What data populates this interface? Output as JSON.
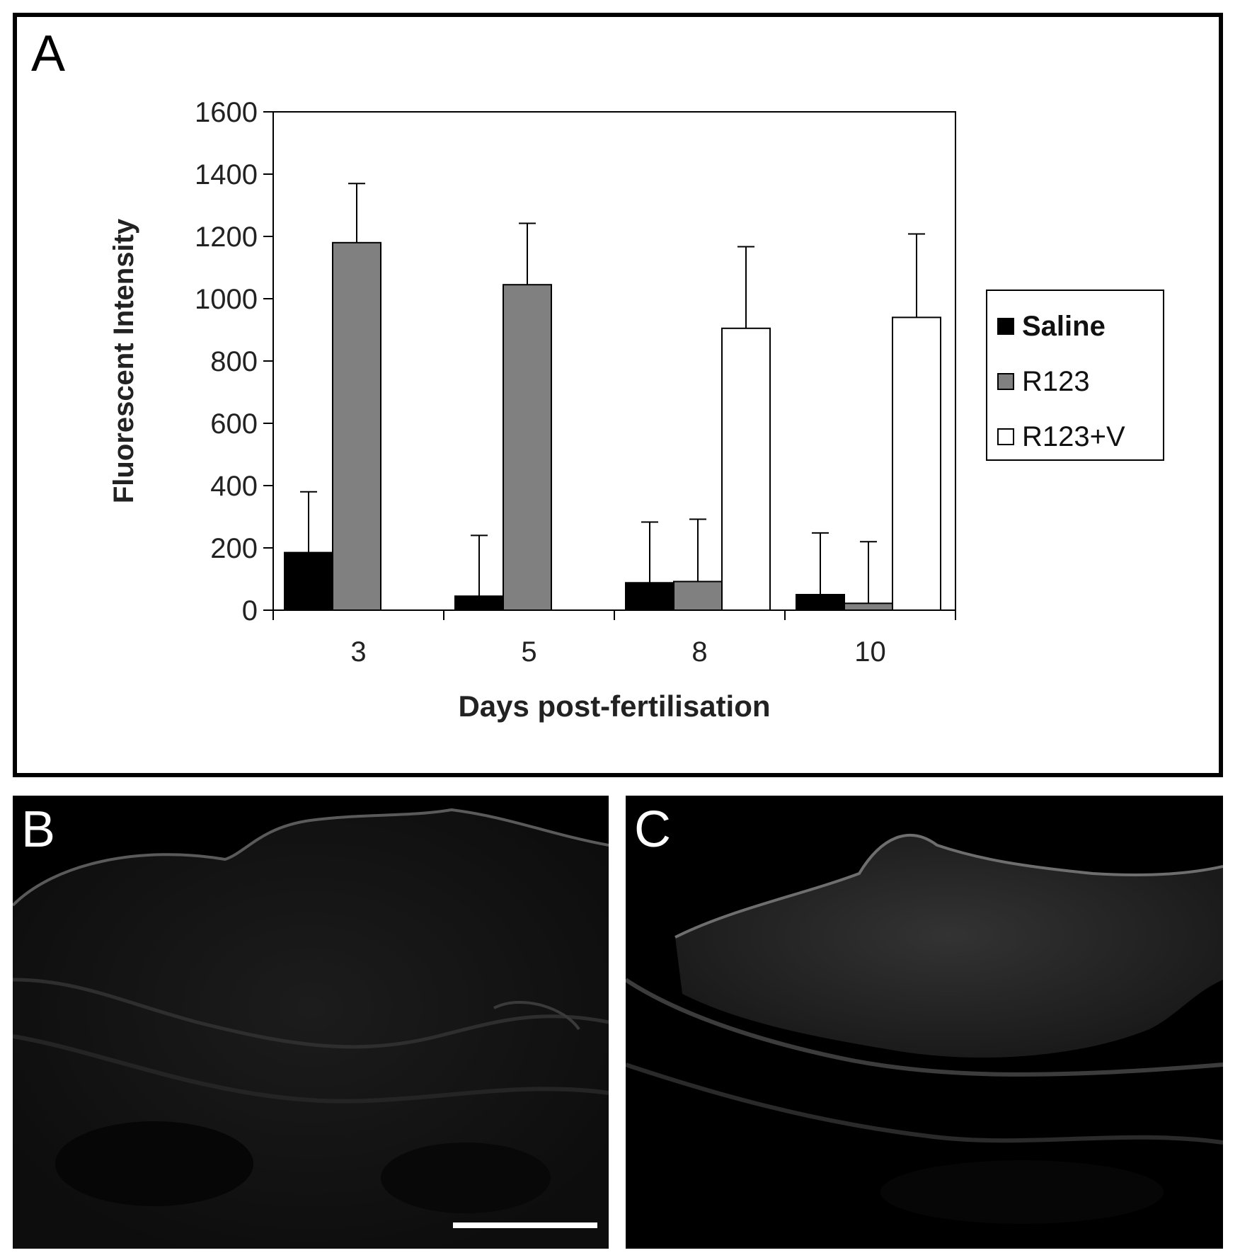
{
  "panels": {
    "a": "A",
    "b": "B",
    "c": "C"
  },
  "chart_data": {
    "type": "bar",
    "title": "",
    "xlabel": "Days post-fertilisation",
    "ylabel": "Fluorescent Intensity",
    "categories": [
      "3",
      "5",
      "8",
      "10"
    ],
    "ylim": [
      0,
      1600
    ],
    "yticks": [
      0,
      200,
      400,
      600,
      800,
      1000,
      1200,
      1400,
      1600
    ],
    "grid": false,
    "legend_position": "right",
    "series": [
      {
        "name": "Saline",
        "color": "#000000",
        "values": [
          185,
          45,
          88,
          50
        ],
        "errors": [
          195,
          195,
          195,
          198
        ]
      },
      {
        "name": "R123",
        "color": "#808080",
        "values": [
          1180,
          1045,
          92,
          22
        ],
        "errors": [
          190,
          197,
          200,
          198
        ]
      },
      {
        "name": "R123+V",
        "color": "#ffffff",
        "values": [
          null,
          null,
          905,
          940
        ],
        "errors": [
          null,
          null,
          262,
          268
        ]
      }
    ]
  }
}
